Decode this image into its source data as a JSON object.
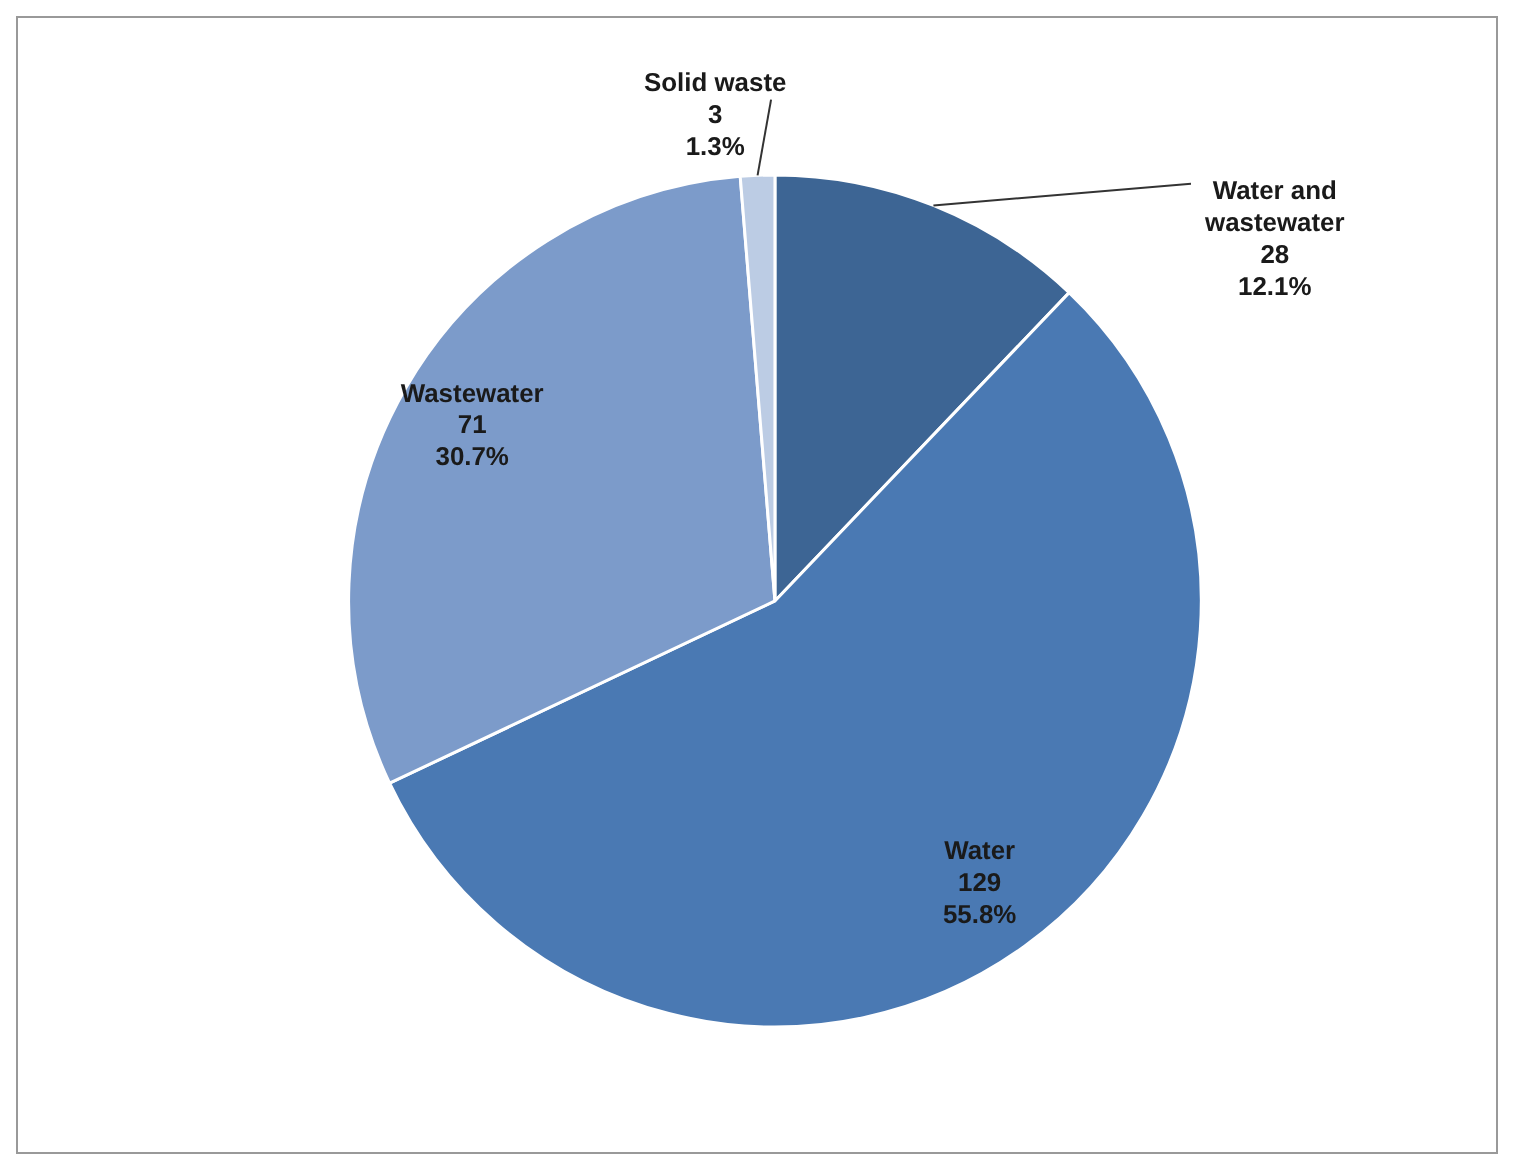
{
  "chart_data": {
    "type": "pie",
    "categories": [
      "Water and wastewater",
      "Water",
      "Wastewater",
      "Solid waste"
    ],
    "values": [
      28,
      129,
      71,
      3
    ],
    "colors": [
      "#3d6594",
      "#4a79b3",
      "#7c9bca",
      "#bccce4"
    ],
    "value_labels": [
      "28\n12.1%",
      "129\n55.8%",
      "71\n30.7%",
      "3\n1.3%"
    ]
  }
}
